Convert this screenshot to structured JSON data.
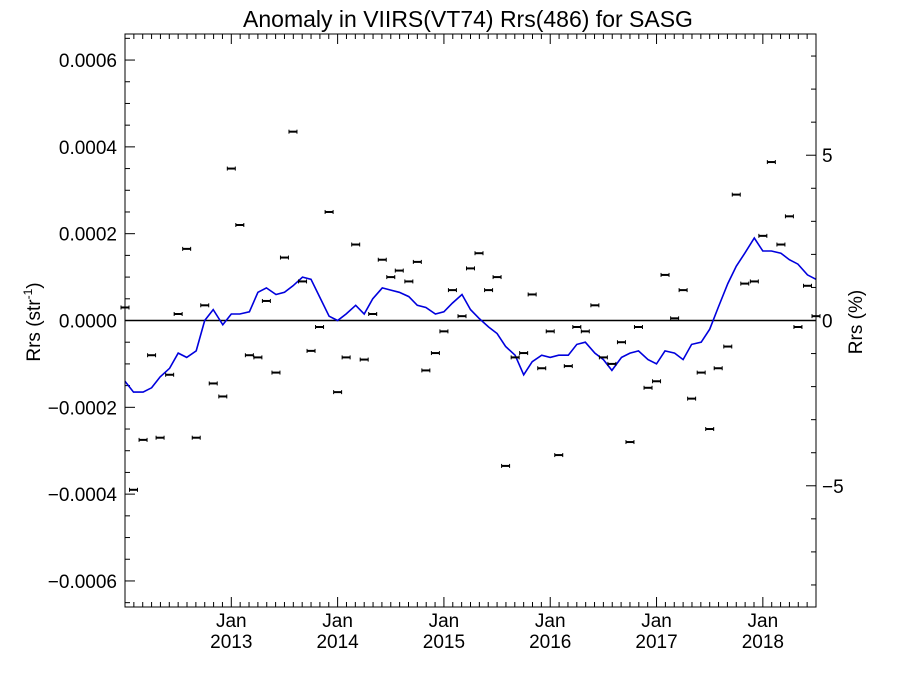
{
  "chart_data": {
    "type": "scatter",
    "title": "Anomaly in VIIRS(VT74) Rrs(486) for SASG",
    "ylabel_left": "Rrs (str",
    "ylabel_left_sup": "-1",
    "ylabel_left_close": ")",
    "ylabel_right": "Rrs (%)",
    "xlim": [
      2012.0,
      2018.5
    ],
    "ylim": [
      -0.00066,
      0.00066
    ],
    "ylim_right": [
      -8.667,
      8.667
    ],
    "x_tick_labels": [
      {
        "x": 2013.0,
        "month": "Jan",
        "year": "2013"
      },
      {
        "x": 2014.0,
        "month": "Jan",
        "year": "2014"
      },
      {
        "x": 2015.0,
        "month": "Jan",
        "year": "2015"
      },
      {
        "x": 2016.0,
        "month": "Jan",
        "year": "2016"
      },
      {
        "x": 2017.0,
        "month": "Jan",
        "year": "2017"
      },
      {
        "x": 2018.0,
        "month": "Jan",
        "year": "2018"
      }
    ],
    "y_left_ticks": [
      {
        "v": 0.0006,
        "label": "0.0006"
      },
      {
        "v": 0.0004,
        "label": "0.0004"
      },
      {
        "v": 0.0002,
        "label": "0.0002"
      },
      {
        "v": 0.0,
        "label": "0.0000"
      },
      {
        "v": -0.0002,
        "label": "−0.0002"
      },
      {
        "v": -0.0004,
        "label": "−0.0004"
      },
      {
        "v": -0.0006,
        "label": "−0.0006"
      }
    ],
    "y_right_ticks": [
      {
        "v": 5,
        "label": "5"
      },
      {
        "v": 0,
        "label": "0"
      },
      {
        "v": -5,
        "label": "−5"
      }
    ],
    "zero_line": 0,
    "colors": {
      "points": "#000000",
      "line": "#0000dd",
      "axes": "#000000"
    },
    "series": [
      {
        "kind": "points_with_error",
        "x": [
          2012.0,
          2012.08,
          2012.17,
          2012.25,
          2012.33,
          2012.42,
          2012.5,
          2012.58,
          2012.67,
          2012.75,
          2012.83,
          2012.92,
          2013.0,
          2013.08,
          2013.17,
          2013.25,
          2013.33,
          2013.42,
          2013.5,
          2013.58,
          2013.67,
          2013.75,
          2013.83,
          2013.92,
          2014.0,
          2014.08,
          2014.17,
          2014.25,
          2014.33,
          2014.42,
          2014.5,
          2014.58,
          2014.67,
          2014.75,
          2014.83,
          2014.92,
          2015.0,
          2015.08,
          2015.17,
          2015.25,
          2015.33,
          2015.42,
          2015.5,
          2015.58,
          2015.67,
          2015.75,
          2015.83,
          2015.92,
          2016.0,
          2016.08,
          2016.17,
          2016.25,
          2016.33,
          2016.42,
          2016.5,
          2016.58,
          2016.67,
          2016.75,
          2016.83,
          2016.92,
          2017.0,
          2017.08,
          2017.17,
          2017.25,
          2017.33,
          2017.42,
          2017.5,
          2017.58,
          2017.67,
          2017.75,
          2017.83,
          2017.92,
          2018.0,
          2018.08,
          2018.17,
          2018.25,
          2018.33,
          2018.42,
          2018.5
        ],
        "y": [
          3e-05,
          -0.00039,
          -0.000275,
          -8e-05,
          -0.00027,
          -0.000125,
          1.5e-05,
          0.000165,
          -0.00027,
          3.5e-05,
          -0.000145,
          -0.000175,
          0.00035,
          0.00022,
          -8e-05,
          -8.5e-05,
          4.5e-05,
          -0.00012,
          0.000145,
          0.000435,
          9e-05,
          -7e-05,
          -1.5e-05,
          0.00025,
          -0.000165,
          -8.5e-05,
          0.000175,
          -9e-05,
          1.5e-05,
          0.00014,
          0.0001,
          0.000115,
          9e-05,
          0.000135,
          -0.000115,
          -7.5e-05,
          -2.5e-05,
          7e-05,
          1e-05,
          0.00012,
          0.000155,
          7e-05,
          0.0001,
          -0.000335,
          -8.5e-05,
          -7.5e-05,
          6e-05,
          -0.00011,
          -2.5e-05,
          -0.00031,
          -0.000105,
          -1.5e-05,
          -2.5e-05,
          3.5e-05,
          -8.5e-05,
          -0.0001,
          -5e-05,
          -0.00028,
          -1.5e-05,
          -0.000155,
          -0.00014,
          0.000105,
          5e-06,
          7e-05,
          -0.00018,
          -0.00012,
          -0.00025,
          -0.00011,
          -6e-05,
          0.00029,
          8.5e-05,
          9e-05,
          0.000195,
          0.000365,
          0.000175,
          0.00024,
          -1.5e-05,
          8e-05,
          1e-05
        ]
      },
      {
        "kind": "smoothed_line",
        "x": [
          2012.0,
          2012.08,
          2012.17,
          2012.25,
          2012.33,
          2012.42,
          2012.5,
          2012.58,
          2012.67,
          2012.75,
          2012.83,
          2012.92,
          2013.0,
          2013.08,
          2013.17,
          2013.25,
          2013.33,
          2013.42,
          2013.5,
          2013.58,
          2013.67,
          2013.75,
          2013.83,
          2013.92,
          2014.0,
          2014.08,
          2014.17,
          2014.25,
          2014.33,
          2014.42,
          2014.5,
          2014.58,
          2014.67,
          2014.75,
          2014.83,
          2014.92,
          2015.0,
          2015.08,
          2015.17,
          2015.25,
          2015.33,
          2015.42,
          2015.5,
          2015.58,
          2015.67,
          2015.75,
          2015.83,
          2015.92,
          2016.0,
          2016.08,
          2016.17,
          2016.25,
          2016.33,
          2016.42,
          2016.5,
          2016.58,
          2016.67,
          2016.75,
          2016.83,
          2016.92,
          2017.0,
          2017.08,
          2017.17,
          2017.25,
          2017.33,
          2017.42,
          2017.5,
          2017.58,
          2017.67,
          2017.75,
          2017.83,
          2017.92,
          2018.0,
          2018.08,
          2018.17,
          2018.25,
          2018.33,
          2018.42,
          2018.5
        ],
        "y": [
          -0.00014,
          -0.000165,
          -0.000165,
          -0.000155,
          -0.00013,
          -0.00011,
          -7.5e-05,
          -8.5e-05,
          -7e-05,
          0.0,
          2.5e-05,
          -1e-05,
          1.5e-05,
          1.5e-05,
          2e-05,
          6.5e-05,
          7.5e-05,
          6e-05,
          6.5e-05,
          8e-05,
          0.0001,
          9.5e-05,
          5.5e-05,
          1e-05,
          0.0,
          1.5e-05,
          3.5e-05,
          1.5e-05,
          5e-05,
          7.5e-05,
          7e-05,
          6.5e-05,
          5.5e-05,
          3.5e-05,
          3e-05,
          1.5e-05,
          2e-05,
          4e-05,
          6e-05,
          2.5e-05,
          5e-06,
          -1.5e-05,
          -3e-05,
          -6e-05,
          -8e-05,
          -0.000125,
          -9.5e-05,
          -8e-05,
          -8.5e-05,
          -8e-05,
          -8e-05,
          -5.5e-05,
          -5e-05,
          -7.5e-05,
          -9e-05,
          -0.000115,
          -8.5e-05,
          -7.5e-05,
          -7e-05,
          -9e-05,
          -0.0001,
          -7e-05,
          -7.5e-05,
          -9e-05,
          -5.5e-05,
          -5e-05,
          -2e-05,
          3e-05,
          8.5e-05,
          0.000125,
          0.000155,
          0.00019,
          0.00016,
          0.00016,
          0.000155,
          0.00014,
          0.00013,
          0.000105,
          9.5e-05
        ]
      }
    ]
  }
}
